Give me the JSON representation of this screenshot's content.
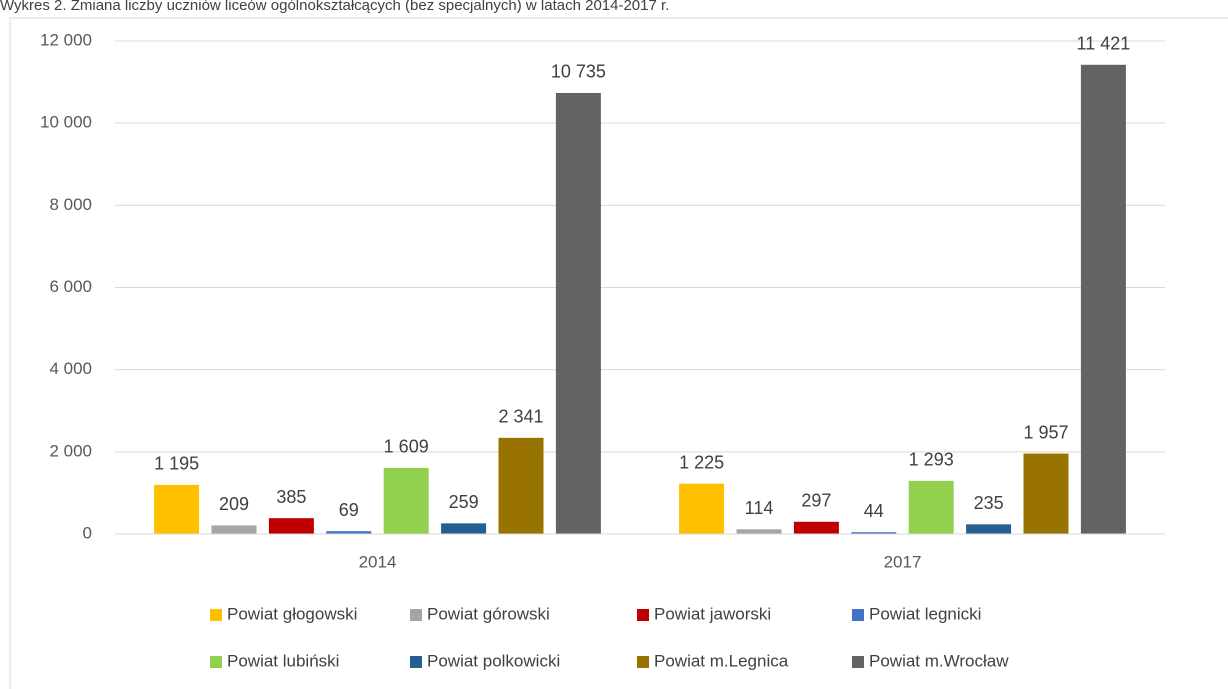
{
  "chart_data": {
    "type": "bar",
    "title": "Wykres 2. Zmiana liczby uczniów liceów ogólnokształcących (bez specjalnych) w latach 2014-2017 r.",
    "categories": [
      "2014",
      "2017"
    ],
    "series": [
      {
        "name": "Powiat głogowski",
        "color": "#ffc000",
        "values": [
          1195,
          1225
        ],
        "value_labels": [
          "1 195",
          "1 225"
        ]
      },
      {
        "name": "Powiat górowski",
        "color": "#a5a5a5",
        "values": [
          209,
          114
        ],
        "value_labels": [
          "209",
          "114"
        ]
      },
      {
        "name": "Powiat jaworski",
        "color": "#c00000",
        "values": [
          385,
          297
        ],
        "value_labels": [
          "385",
          "297"
        ]
      },
      {
        "name": "Powiat legnicki",
        "color": "#4472c4",
        "values": [
          69,
          44
        ],
        "value_labels": [
          "69",
          "44"
        ]
      },
      {
        "name": "Powiat lubiński",
        "color": "#92d050",
        "values": [
          1609,
          1293
        ],
        "value_labels": [
          "1 609",
          "1 293"
        ]
      },
      {
        "name": "Powiat polkowicki",
        "color": "#255e91",
        "values": [
          259,
          235
        ],
        "value_labels": [
          "259",
          "235"
        ]
      },
      {
        "name": "Powiat m.Legnica",
        "color": "#997300",
        "values": [
          2341,
          1957
        ],
        "value_labels": [
          "2 341",
          "1 957"
        ]
      },
      {
        "name": "Powiat m.Wrocław",
        "color": "#636363",
        "values": [
          10735,
          11421
        ],
        "value_labels": [
          "10 735",
          "11 421"
        ]
      }
    ],
    "ylim": [
      0,
      12000
    ],
    "yticks": [
      0,
      {
        "value": 2000,
        "label": "2 000"
      },
      {
        "value": 4000,
        "label": "4 000"
      },
      {
        "value": 6000,
        "label": "6 000"
      },
      {
        "value": 8000,
        "label": "8 000"
      },
      {
        "value": 10000,
        "label": "10 000"
      },
      {
        "value": 12000,
        "label": "12 000"
      }
    ],
    "grid": true
  }
}
